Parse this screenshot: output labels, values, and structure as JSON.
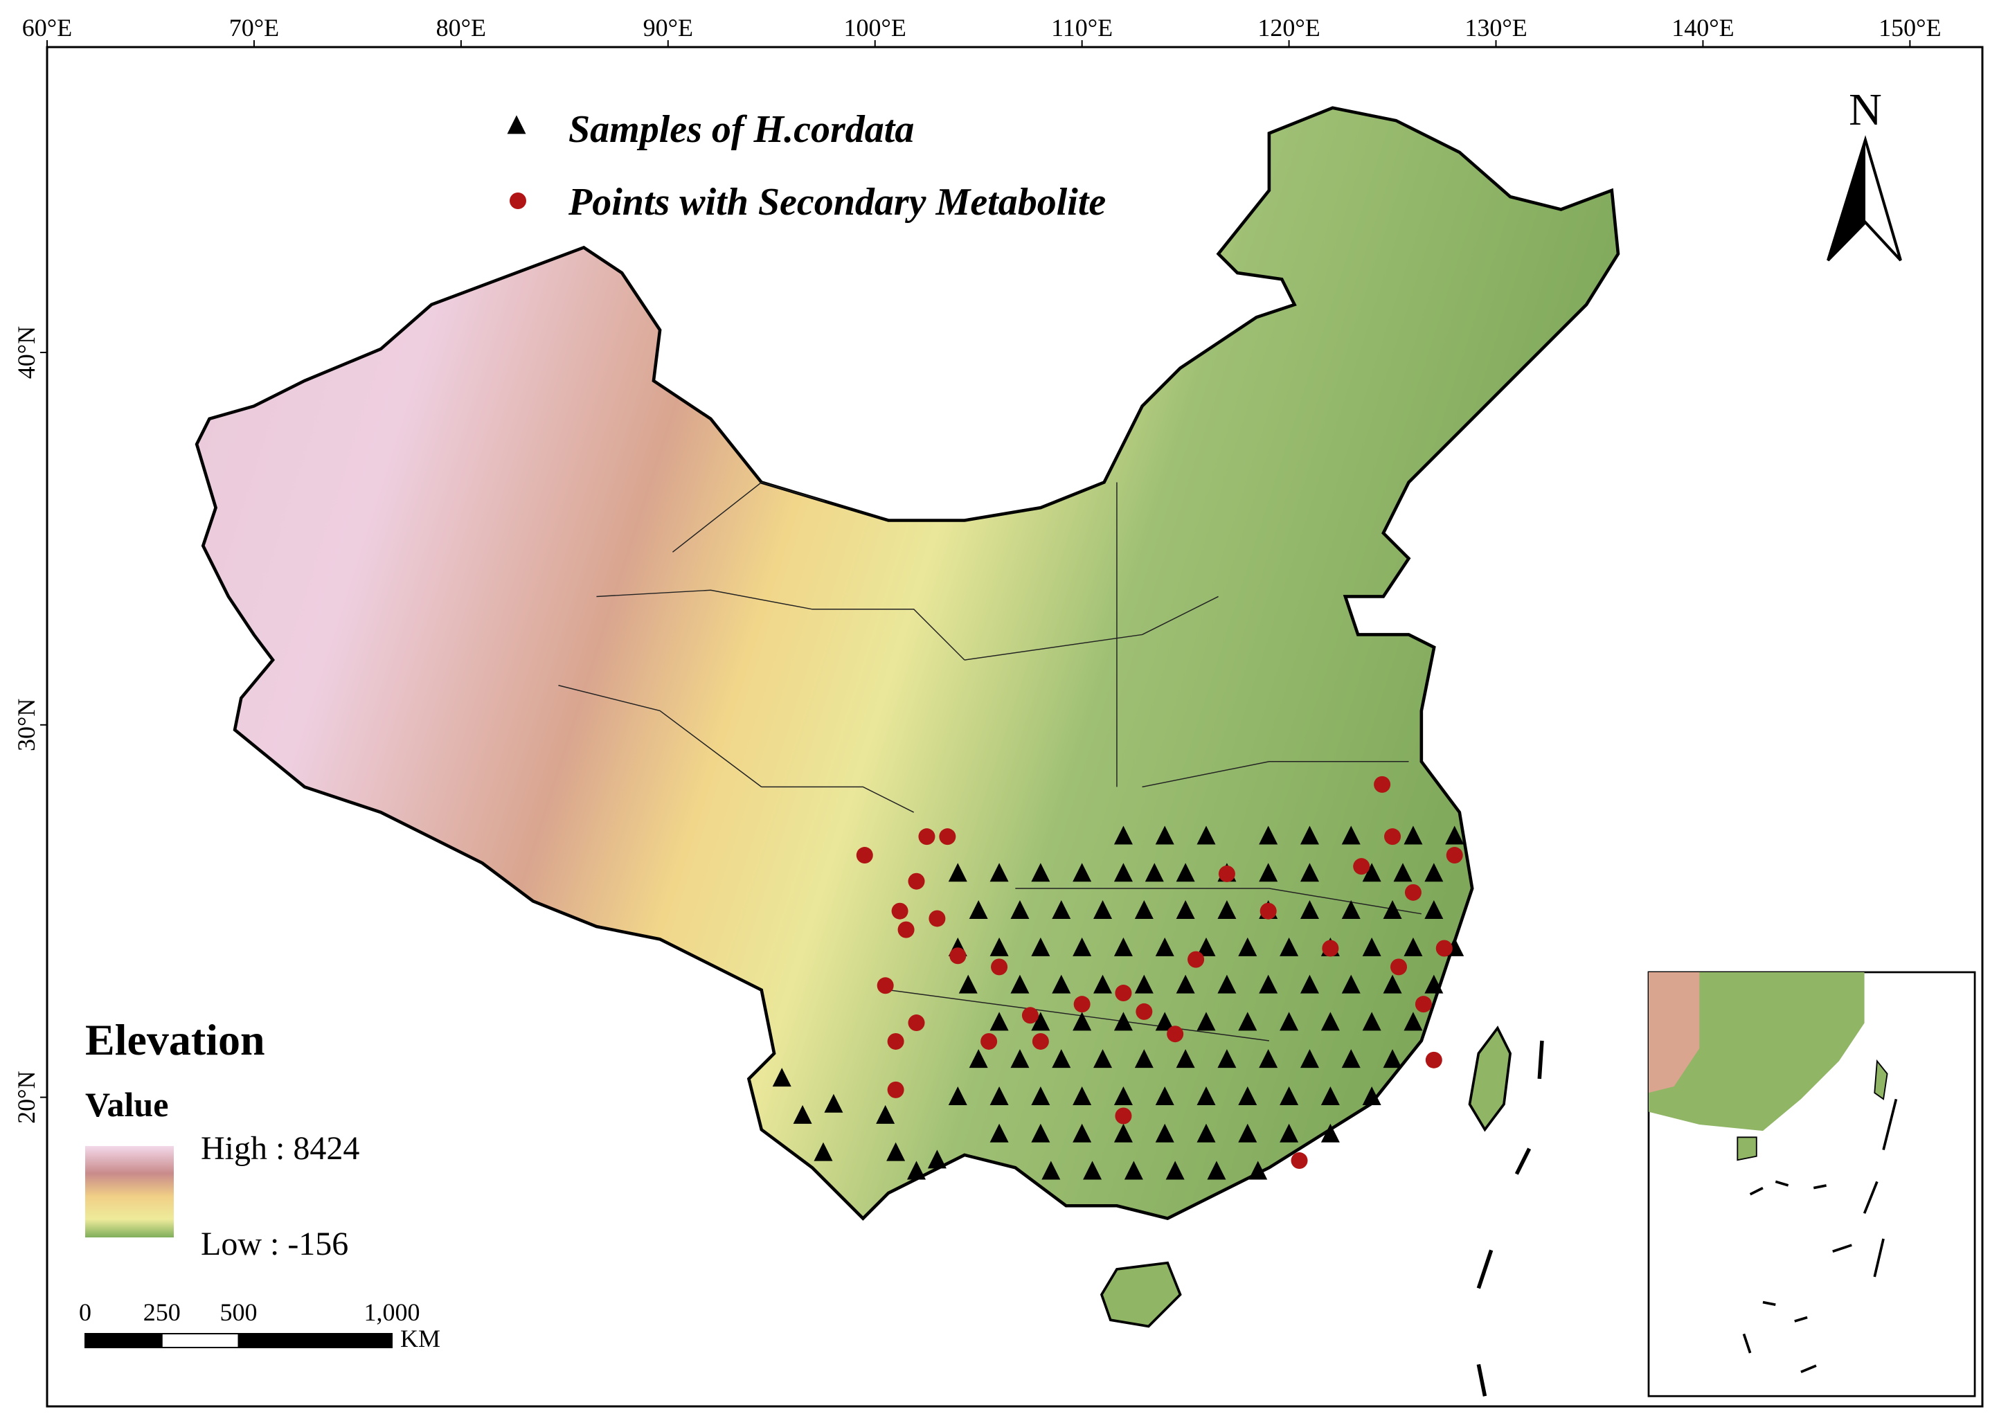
{
  "map": {
    "lon_ticks": [
      {
        "value": 60,
        "label": "60°E"
      },
      {
        "value": 70,
        "label": "70°E"
      },
      {
        "value": 80,
        "label": "80°E"
      },
      {
        "value": 90,
        "label": "90°E"
      },
      {
        "value": 100,
        "label": "100°E"
      },
      {
        "value": 110,
        "label": "110°E"
      },
      {
        "value": 120,
        "label": "120°E"
      },
      {
        "value": 130,
        "label": "130°E"
      },
      {
        "value": 140,
        "label": "140°E"
      },
      {
        "value": 150,
        "label": "150°E"
      }
    ],
    "lat_ticks": [
      {
        "value": 40,
        "label": "40°N"
      },
      {
        "value": 30,
        "label": "30°N"
      },
      {
        "value": 20,
        "label": "20°N"
      }
    ],
    "xlim": [
      60,
      153.5
    ],
    "ylim": [
      11.7,
      48.2
    ],
    "samples": {
      "label": "Samples of H.cordata",
      "color": "#000000",
      "lon": [
        95.5,
        96.5,
        98,
        97.5,
        100.5,
        101,
        102,
        103,
        112,
        114,
        116,
        119,
        121,
        123,
        126,
        128,
        104,
        106,
        108,
        110,
        112,
        113.5,
        115,
        117,
        119,
        121,
        124,
        125.5,
        127,
        105,
        107,
        109,
        111,
        113,
        115,
        117,
        119,
        121,
        123,
        125,
        127,
        104,
        106,
        108,
        110,
        112,
        114,
        116,
        118,
        120,
        122,
        124,
        126,
        128,
        104.5,
        107,
        109,
        111,
        113,
        115,
        117,
        119,
        121,
        123,
        125,
        127,
        106,
        108,
        110,
        112,
        114,
        116,
        118,
        120,
        122,
        124,
        126,
        105,
        107,
        109,
        111,
        113,
        115,
        117,
        119,
        121,
        123,
        125,
        104,
        106,
        108,
        110,
        112,
        114,
        116,
        118,
        120,
        122,
        124,
        106,
        108,
        110,
        112,
        114,
        116,
        118,
        120,
        122,
        108.5,
        110.5,
        112.5,
        114.5,
        116.5,
        118.5
      ],
      "lat": [
        20.5,
        19.5,
        19.8,
        18.5,
        19.5,
        18.5,
        18,
        18.3,
        27,
        27,
        27,
        27,
        27,
        27,
        27,
        27,
        26,
        26,
        26,
        26,
        26,
        26,
        26,
        26,
        26,
        26,
        26,
        26,
        26,
        25,
        25,
        25,
        25,
        25,
        25,
        25,
        25,
        25,
        25,
        25,
        25,
        24,
        24,
        24,
        24,
        24,
        24,
        24,
        24,
        24,
        24,
        24,
        24,
        24,
        23,
        23,
        23,
        23,
        23,
        23,
        23,
        23,
        23,
        23,
        23,
        23,
        22,
        22,
        22,
        22,
        22,
        22,
        22,
        22,
        22,
        22,
        22,
        21,
        21,
        21,
        21,
        21,
        21,
        21,
        21,
        21,
        21,
        21,
        20,
        20,
        20,
        20,
        20,
        20,
        20,
        20,
        20,
        20,
        20,
        19,
        19,
        19,
        19,
        19,
        19,
        19,
        19,
        19,
        18,
        18,
        18,
        18,
        18,
        18
      ]
    },
    "metabolite_points": {
      "label": "Points with Secondary Metabolite",
      "color": "#b01414",
      "lon": [
        99.5,
        102.5,
        103.5,
        102,
        101.2,
        101.5,
        103,
        104,
        100.5,
        101,
        102,
        101,
        106,
        107.5,
        108,
        110,
        112,
        113,
        114.5,
        115.5,
        117,
        119,
        120.5,
        122,
        123.5,
        124.5,
        125,
        126,
        125.3,
        126.5,
        127.5,
        128,
        127,
        105.5,
        112
      ],
      "lat": [
        26.5,
        27,
        27,
        25.8,
        25,
        24.5,
        24.8,
        23.8,
        23,
        21.5,
        22,
        20.2,
        23.5,
        22.2,
        21.5,
        22.5,
        22.8,
        22.3,
        21.7,
        23.7,
        26,
        25,
        18.3,
        24,
        26.2,
        28.4,
        27,
        25.5,
        23.5,
        22.5,
        24,
        26.5,
        21,
        21.5,
        19.5
      ]
    }
  },
  "north": "N",
  "legend": {
    "title": "Elevation",
    "subtitle": "Value",
    "high": "High : 8424",
    "low": "Low : -156"
  },
  "scale_bar": {
    "ticks": [
      0,
      250,
      500,
      {
        "value": 1000,
        "label": "1,000"
      }
    ],
    "unit": "KM"
  }
}
